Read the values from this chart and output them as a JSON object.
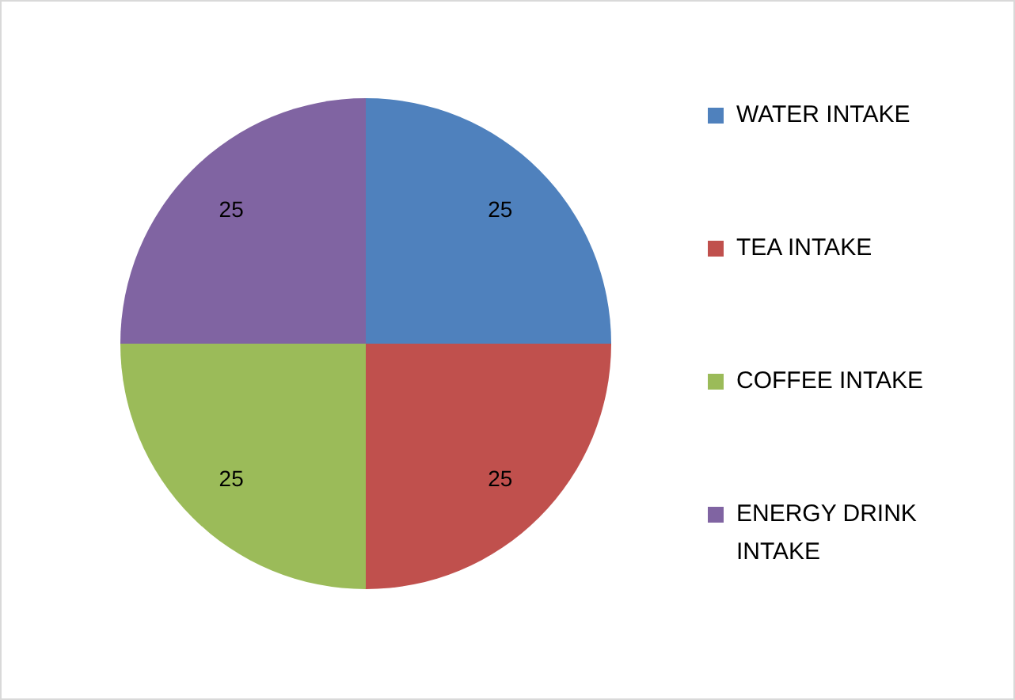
{
  "chart_data": {
    "type": "pie",
    "categories": [
      "WATER INTAKE",
      "TEA INTAKE",
      "COFFEE INTAKE",
      "ENERGY DRINK INTAKE"
    ],
    "values": [
      25,
      25,
      25,
      25
    ],
    "colors": [
      "#4f81bd",
      "#c0504d",
      "#9bbb59",
      "#8064a2"
    ],
    "data_labels": true,
    "legend": "right"
  }
}
